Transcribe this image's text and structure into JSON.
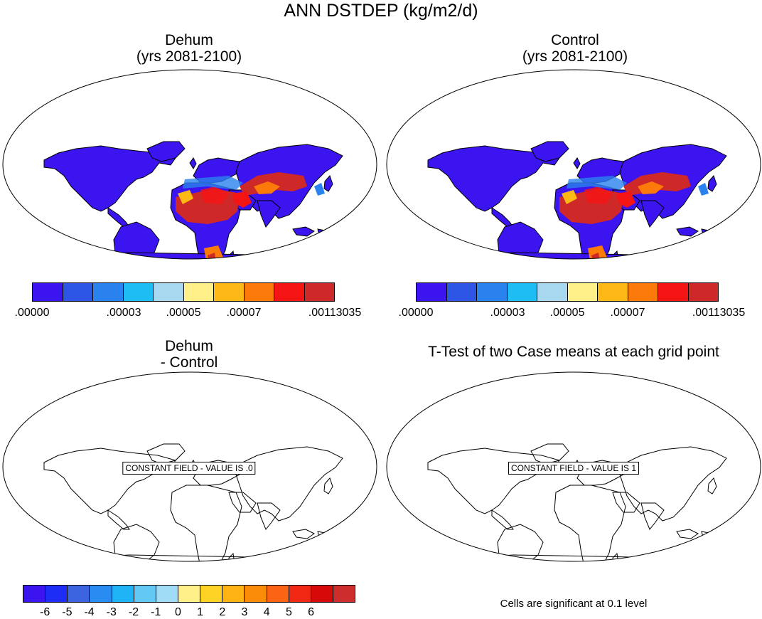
{
  "title": "ANN DSTDEP (kg/m2/d)",
  "panels": {
    "top_left": {
      "line1": "Dehum",
      "line2": "(yrs 2081-2100)"
    },
    "top_right": {
      "line1": "Control",
      "line2": "(yrs 2081-2100)"
    },
    "bottom_left": {
      "line1": "Dehum",
      "line2": "- Control",
      "box": "CONSTANT FIELD - VALUE IS .0"
    },
    "bottom_right": {
      "line1": "T-Test of two Case means at each grid point",
      "box": "CONSTANT FIELD - VALUE IS 1"
    }
  },
  "colorbar_top": {
    "colors": [
      "#3c14f0",
      "#2d55e6",
      "#2a82ee",
      "#1ebef5",
      "#a8d8f0",
      "#fff08a",
      "#fcb814",
      "#fb7a0a",
      "#f51414",
      "#cf2828"
    ],
    "labels": [
      ".00000",
      ".00003",
      ".00005",
      ".00007",
      ".00113035"
    ]
  },
  "colorbar_bottom": {
    "colors": [
      "#3c14f0",
      "#1e2df5",
      "#3c64e1",
      "#288cf0",
      "#1eb4f5",
      "#64c8f5",
      "#a0dcf5",
      "#fff08a",
      "#ffd223",
      "#ffb414",
      "#fa8c0a",
      "#fa6414",
      "#f02814",
      "#d70a0a",
      "#cd2d2d"
    ],
    "labels": [
      "-6",
      "-5",
      "-4",
      "-3",
      "-2",
      "-1",
      "0",
      "1",
      "2",
      "3",
      "4",
      "5",
      "6"
    ]
  },
  "footnote": "Cells are significant at 0.1 level",
  "colors": {
    "ocean": "#ffffff",
    "land_base": "#3c14f0",
    "dust_high": "#d7261e"
  }
}
